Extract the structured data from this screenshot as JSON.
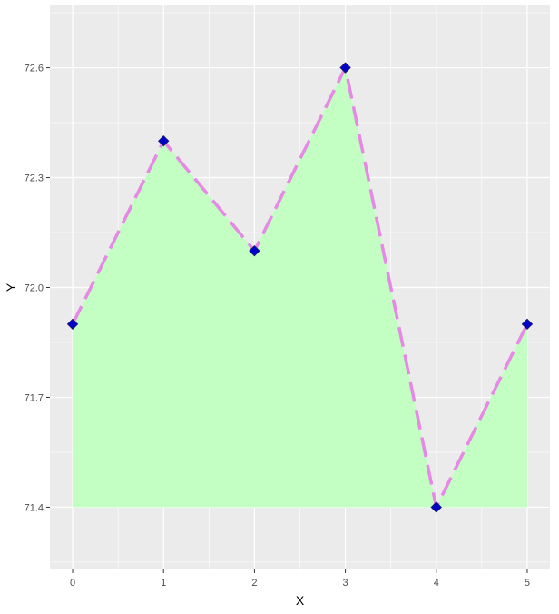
{
  "chart_data": {
    "type": "area",
    "xlabel": "X",
    "ylabel": "Y",
    "x": [
      0,
      1,
      2,
      3,
      4,
      5
    ],
    "series": [
      {
        "values": [
          71.9,
          72.4,
          72.1,
          72.6,
          71.4,
          71.9
        ]
      }
    ],
    "x_ticks": [
      "0",
      "1",
      "2",
      "3",
      "4",
      "5"
    ],
    "y_ticks": [
      "71.4",
      "71.7",
      "72.0",
      "72.3",
      "72.6"
    ],
    "xlim": [
      -0.25,
      5.25
    ],
    "ylim": [
      71.23,
      72.77
    ],
    "area_baseline": 71.4,
    "grid": true,
    "legend": "none",
    "colors": {
      "panel": "#ebebeb",
      "grid": "#ffffff",
      "area_fill": "#c3ffc3",
      "line": "#e589e5",
      "point": "#0000cc",
      "point_outline": "#1a1a6e"
    },
    "line_style": "dashed",
    "marker": "diamond"
  }
}
